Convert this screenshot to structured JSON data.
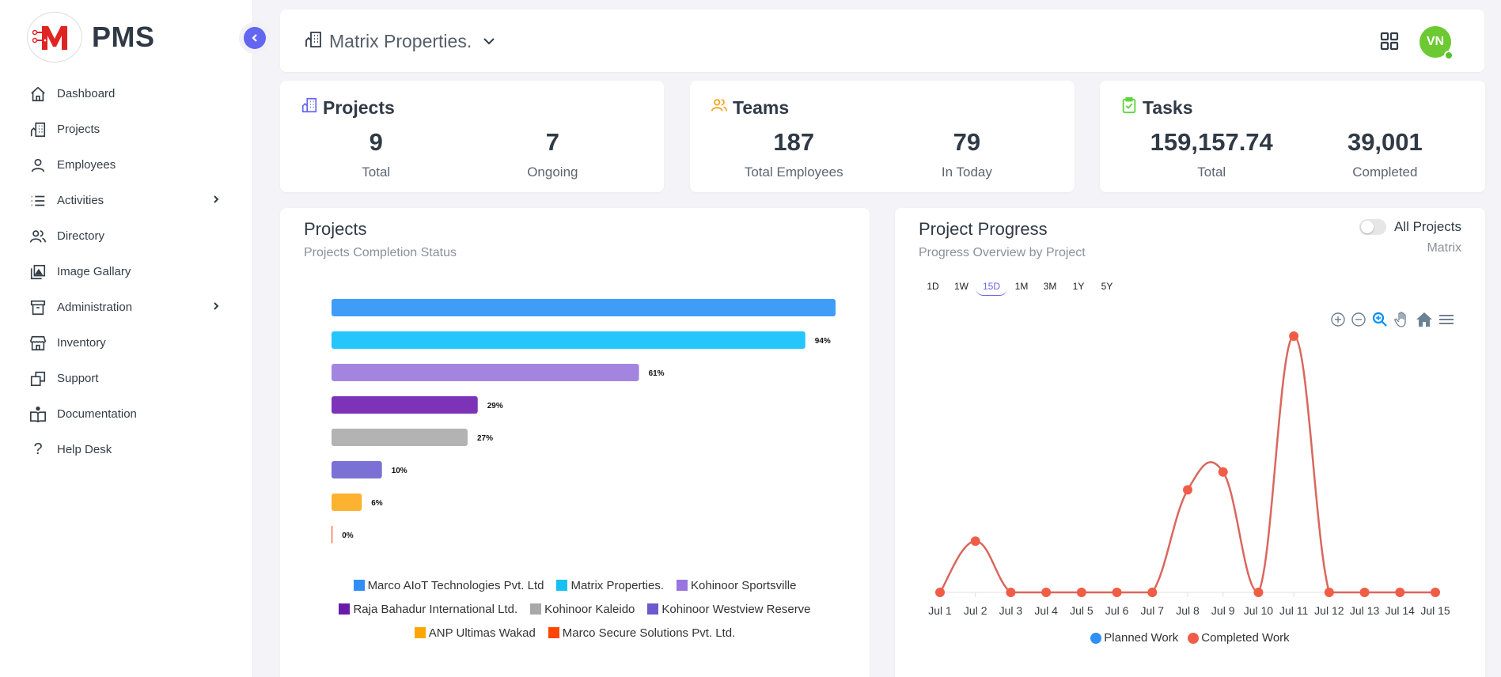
{
  "app": {
    "name": "PMS"
  },
  "sidebar": {
    "items": [
      {
        "label": "Dashboard",
        "icon": "home-icon",
        "has_submenu": false
      },
      {
        "label": "Projects",
        "icon": "building-icon",
        "has_submenu": false
      },
      {
        "label": "Employees",
        "icon": "user-icon",
        "has_submenu": false
      },
      {
        "label": "Activities",
        "icon": "list-icon",
        "has_submenu": true
      },
      {
        "label": "Directory",
        "icon": "users-icon",
        "has_submenu": false
      },
      {
        "label": "Image Gallary",
        "icon": "gallery-icon",
        "has_submenu": false
      },
      {
        "label": "Administration",
        "icon": "archive-icon",
        "has_submenu": true
      },
      {
        "label": "Inventory",
        "icon": "store-icon",
        "has_submenu": false
      },
      {
        "label": "Support",
        "icon": "copy-icon",
        "has_submenu": false
      },
      {
        "label": "Documentation",
        "icon": "book-icon",
        "has_submenu": false
      },
      {
        "label": "Help Desk",
        "icon": "question-icon",
        "has_submenu": false
      }
    ]
  },
  "header": {
    "organization": "Matrix Properties.",
    "avatar_initials": "VN",
    "avatar_color": "#6cc932"
  },
  "stats": {
    "projects": {
      "title": "Projects",
      "icon_color": "#6366f1",
      "items": [
        {
          "value": "9",
          "label": "Total"
        },
        {
          "value": "7",
          "label": "Ongoing"
        }
      ]
    },
    "teams": {
      "title": "Teams",
      "icon_color": "#f5a623",
      "items": [
        {
          "value": "187",
          "label": "Total Employees"
        },
        {
          "value": "79",
          "label": "In Today"
        }
      ]
    },
    "tasks": {
      "title": "Tasks",
      "icon_color": "#5fd33c",
      "items": [
        {
          "value": "159,157.74",
          "label": "Total"
        },
        {
          "value": "39,001",
          "label": "Completed"
        }
      ]
    }
  },
  "projects_panel": {
    "title": "Projects",
    "subtitle": "Projects Completion Status"
  },
  "progress_panel": {
    "title": "Project Progress",
    "subtitle": "Progress Overview by Project",
    "toggle_label": "All Projects",
    "toggle_on": false,
    "project_name": "Matrix",
    "range_tabs": [
      "1D",
      "1W",
      "15D",
      "1M",
      "3M",
      "1Y",
      "5Y"
    ],
    "active_range": "15D"
  },
  "chart_data": [
    {
      "type": "bar",
      "orientation": "horizontal",
      "title": "Projects Completion Status",
      "categories": [
        "Marco AIoT Technologies Pvt. Ltd",
        "Matrix Properties.",
        "Kohinoor Sportsville",
        "Raja Bahadur International Ltd.",
        "Kohinoor Kaleido",
        "Kohinoor Westview Reserve",
        "ANP Ultimas Wakad",
        "Marco Secure Solutions Pvt. Ltd."
      ],
      "values": [
        100,
        94,
        61,
        29,
        27,
        10,
        6,
        0
      ],
      "data_labels": [
        "",
        "94%",
        "61%",
        "29%",
        "27%",
        "10%",
        "6%",
        "0%"
      ],
      "colors": [
        "#3f9df8",
        "#25c6fb",
        "#a385e0",
        "#7d33b7",
        "#b3b3b3",
        "#7b71d4",
        "#fdb32f",
        "#f05a28"
      ],
      "legend_colors": [
        "#2f8ff5",
        "#14c0f5",
        "#9a74e0",
        "#6a1aa8",
        "#a8a8a8",
        "#6a5acd",
        "#ffa500",
        "#ff4500"
      ],
      "xlim": [
        0,
        100
      ],
      "legend": "bottom"
    },
    {
      "type": "line",
      "title": "Progress Overview by Project",
      "x": [
        "Jul 1",
        "Jul 2",
        "Jul 3",
        "Jul 4",
        "Jul 5",
        "Jul 6",
        "Jul 7",
        "Jul 8",
        "Jul 9",
        "Jul 10",
        "Jul 11",
        "Jul 12",
        "Jul 13",
        "Jul 14",
        "Jul 15"
      ],
      "series": [
        {
          "name": "Planned Work",
          "color": "#2f8ff5",
          "values": []
        },
        {
          "name": "Completed Work",
          "color": "#f05d47",
          "line_color": "#d9675d",
          "values": [
            0,
            20,
            0,
            0,
            0,
            0,
            0,
            40,
            47,
            0,
            100,
            0,
            0,
            0,
            0
          ]
        }
      ],
      "ylim": [
        0,
        100
      ],
      "y_axis_visible": false,
      "legend": "bottom"
    }
  ]
}
